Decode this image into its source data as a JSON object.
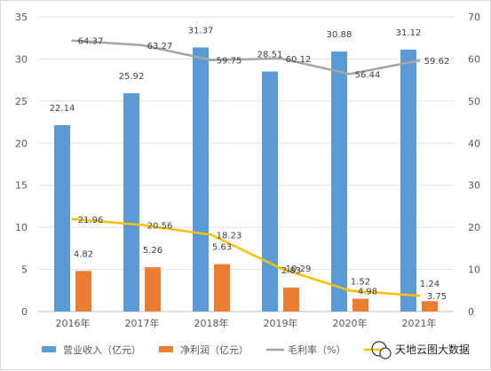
{
  "chart_data": {
    "type": "bar",
    "categories": [
      "2016年",
      "2017年",
      "2018年",
      "2019年",
      "2020年",
      "2021年"
    ],
    "ylim": [
      0,
      35
    ],
    "y_ticks": [
      0,
      5,
      10,
      15,
      20,
      25,
      30,
      35
    ],
    "y2lim": [
      0,
      70
    ],
    "y2_ticks": [
      0,
      10,
      20,
      30,
      40,
      50,
      60,
      70
    ],
    "grid": true,
    "legend_position": "bottom",
    "series": [
      {
        "name": "营业收入（亿元）",
        "type": "bar",
        "axis": "left",
        "color": "#5b9bd5",
        "values": [
          22.14,
          25.92,
          31.37,
          28.51,
          30.88,
          31.12
        ],
        "labels": [
          "22.14",
          "25.92",
          "31.37",
          "28.51",
          "30.88",
          "31.12"
        ]
      },
      {
        "name": "净利润（亿元）",
        "type": "bar",
        "axis": "left",
        "color": "#ed7d31",
        "values": [
          4.82,
          5.26,
          5.63,
          2.83,
          1.52,
          1.24
        ],
        "labels": [
          "4.82",
          "5.26",
          "5.63",
          "2.83",
          "1.52",
          "1.24"
        ]
      },
      {
        "name": "毛利率（%）",
        "type": "line",
        "axis": "right",
        "color": "#a5a5a5",
        "values": [
          64.37,
          63.27,
          59.75,
          60.12,
          56.44,
          59.62
        ],
        "labels": [
          "64.37",
          "63.27",
          "59.75",
          "60.12",
          "56.44",
          "59.62"
        ]
      },
      {
        "name": "",
        "type": "line",
        "axis": "right",
        "color": "#ffc000",
        "values": [
          21.96,
          20.56,
          18.23,
          10.29,
          4.98,
          3.75
        ],
        "labels": [
          "21.96",
          "20.56",
          "18.23",
          "10.29",
          "4.98",
          "3.75"
        ]
      }
    ]
  },
  "watermark": {
    "text": "天地云图大数据"
  }
}
